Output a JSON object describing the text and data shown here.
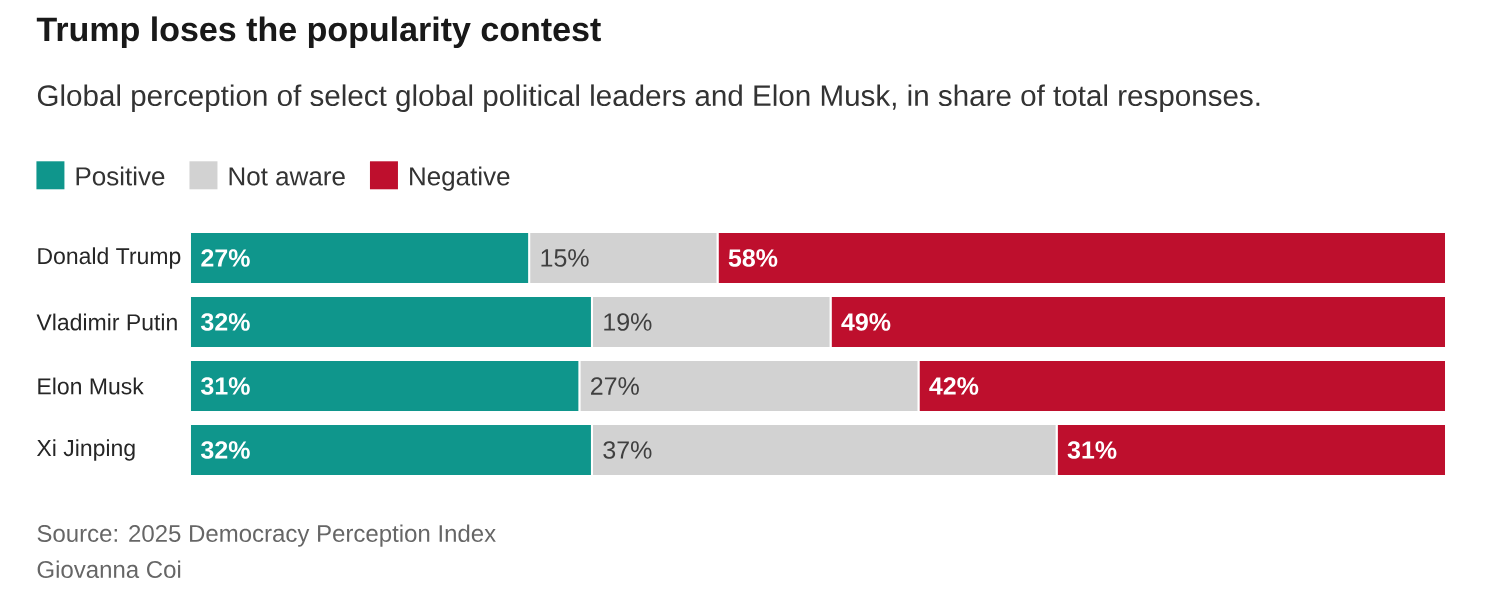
{
  "chart_data": {
    "type": "bar",
    "orientation": "horizontal",
    "stacked": true,
    "title": "Trump loses the popularity contest",
    "subtitle": "Global perception of select global political leaders and Elon Musk, in share of total responses.",
    "categories": [
      "Donald Trump",
      "Vladimir Putin",
      "Elon Musk",
      "Xi Jinping"
    ],
    "series": [
      {
        "name": "Positive",
        "color": "#0f968c",
        "values": [
          27,
          32,
          31,
          32
        ],
        "value_labels": [
          "27%",
          "32%",
          "31%",
          "32%"
        ]
      },
      {
        "name": "Not aware",
        "color": "#d2d2d2",
        "values": [
          15,
          19,
          27,
          37
        ],
        "value_labels": [
          "15%",
          "19%",
          "27%",
          "37%"
        ]
      },
      {
        "name": "Negative",
        "color": "#be0f2d",
        "values": [
          58,
          49,
          42,
          31
        ],
        "value_labels": [
          "58%",
          "49%",
          "42%",
          "31%"
        ]
      }
    ],
    "xlim": [
      0,
      100
    ],
    "tick_labels": "y",
    "legend": "top left",
    "annotations": [
      "Source: 2025 Democracy Perception Index",
      "Giovanna Coi"
    ]
  }
}
